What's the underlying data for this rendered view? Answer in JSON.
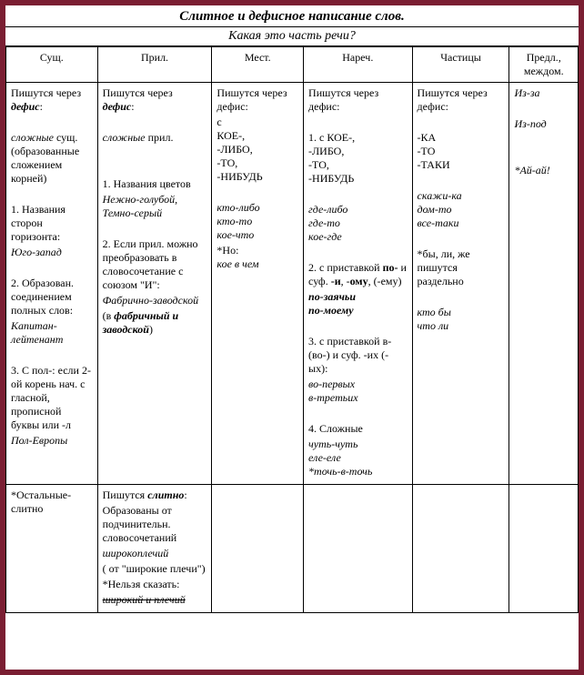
{
  "title": "Слитное и дефисное написание слов.",
  "subtitle": "Какая это часть речи?",
  "columns": [
    "Сущ.",
    "Прил.",
    "Мест.",
    "Нареч.",
    "Частицы",
    "Предл., междом."
  ],
  "row1": {
    "c1": {
      "head": "Пишутся через",
      "head2": "дефис",
      "p1a": "сложные",
      "p1b": " сущ. (образованные сложением корней)",
      "n1": "1. Названия сторон горизонта:",
      "ex1": "Юго-запад",
      "n2": "2. Образован. соединением полных слов:",
      "ex2": "Капитан-лейтенант",
      "n3": "3. С пол-:  если 2-ой корень нач. с гласной, прописной буквы или -л",
      "ex3": "Пол-Европы"
    },
    "c2": {
      "head": "Пишутся через",
      "head2": "дефис",
      "p1": "сложные",
      "p1b": " прил.",
      "n1": "1. Названия цветов",
      "ex1": "Нежно-голубой, Темно-серый",
      "n2": "2. Если прил. можно преобразовать в словосочетание с союзом \"И\":",
      "ex2": "Фабрично-заводской",
      "paren1": "(в ",
      "paren2": "фабричный и заводской",
      "paren3": ")"
    },
    "c3": {
      "head": "Пишутся через дефис:",
      "list": "с КОЕ-, -ЛИБО, -ТО, -НИБУДЬ",
      "ex": "кто-либо кто-то кое-что",
      "but": "*Но:",
      "butex": "кое в чем"
    },
    "c4": {
      "head": "Пишутся через дефис:",
      "n1": "1. с КОЕ-, -ЛИБО, -ТО, -НИБУДЬ",
      "ex1": "где-либо где-то кое-где",
      "n2a": "2. с приставкой ",
      "n2b": "по-",
      "n2c": " и суф. ",
      "n2d": "-и",
      "n2e": ", -",
      "n2f": "ому",
      "n2g": ", (-ему)",
      "ex2a": "по-заячь",
      "ex2b": "и",
      "ex2c": "по-",
      "ex2d": "моему",
      "n3": "3. с приставкой в- (во-) и суф. -их (-ых):",
      "ex3": "во-первых в-третьих",
      "n4": "4. Сложные",
      "ex4": "чуть-чуть еле-еле *точь-в-точь"
    },
    "c5": {
      "head": "Пишутся через дефис:",
      "list": "-КА -ТО -ТАКИ",
      "ex": "скажи-ка дом-то все-таки",
      "but": "*бы, ли, же пишутся раздельно",
      "butex": "кто бы что ли"
    },
    "c6": {
      "e1": "Из-за",
      "e2": "Из-под",
      "e3": "*Ай-ай!"
    }
  },
  "row2": {
    "c1": "*Остальные-слитно",
    "c2": {
      "head": "Пишутся",
      "head2": "слитно",
      "p1": "Образованы от подчинительн. словосочетаний",
      "ex1": "широкоплечий",
      "paren": "( от \"широкие плечи\")",
      "but": "*Нельзя сказать:",
      "butex": "широкий и плечий"
    }
  }
}
